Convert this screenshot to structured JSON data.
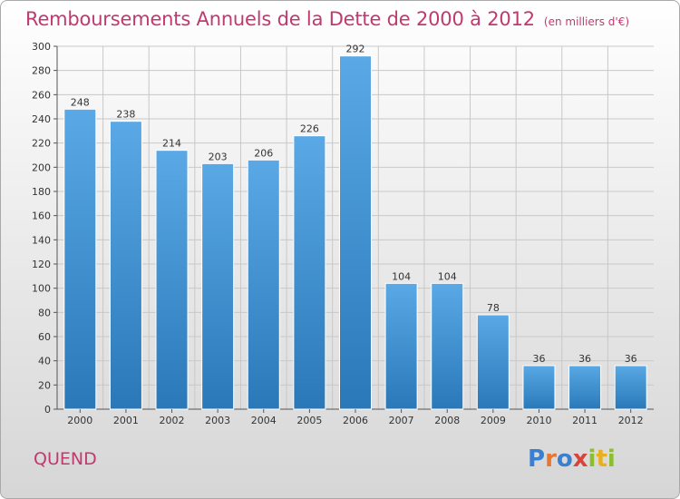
{
  "page": {
    "commune": "QUEND",
    "logo_text": "Proxiti",
    "logo_colors": [
      "#3a7fd0",
      "#e8762c",
      "#3a7fd0",
      "#d8443c",
      "#8bbf2e",
      "#e8b020",
      "#8bbf2e"
    ]
  },
  "chart_data": {
    "type": "bar",
    "title": "Remboursements Annuels de la Dette de 2000 à 2012",
    "subtitle": "(en milliers d'€)",
    "categories": [
      "2000",
      "2001",
      "2002",
      "2003",
      "2004",
      "2005",
      "2006",
      "2007",
      "2008",
      "2009",
      "2010",
      "2011",
      "2012"
    ],
    "values": [
      248,
      238,
      214,
      203,
      206,
      226,
      292,
      104,
      104,
      78,
      36,
      36,
      36
    ],
    "ylim": [
      0,
      300
    ],
    "yticks": [
      0,
      20,
      40,
      60,
      80,
      100,
      120,
      140,
      160,
      180,
      200,
      220,
      240,
      260,
      280,
      300
    ],
    "xlabel": "",
    "ylabel": "",
    "grid": true,
    "bar_color_top": "#5aa9e6",
    "bar_color_bottom": "#2a78b8",
    "title_color": "#c0396f"
  }
}
